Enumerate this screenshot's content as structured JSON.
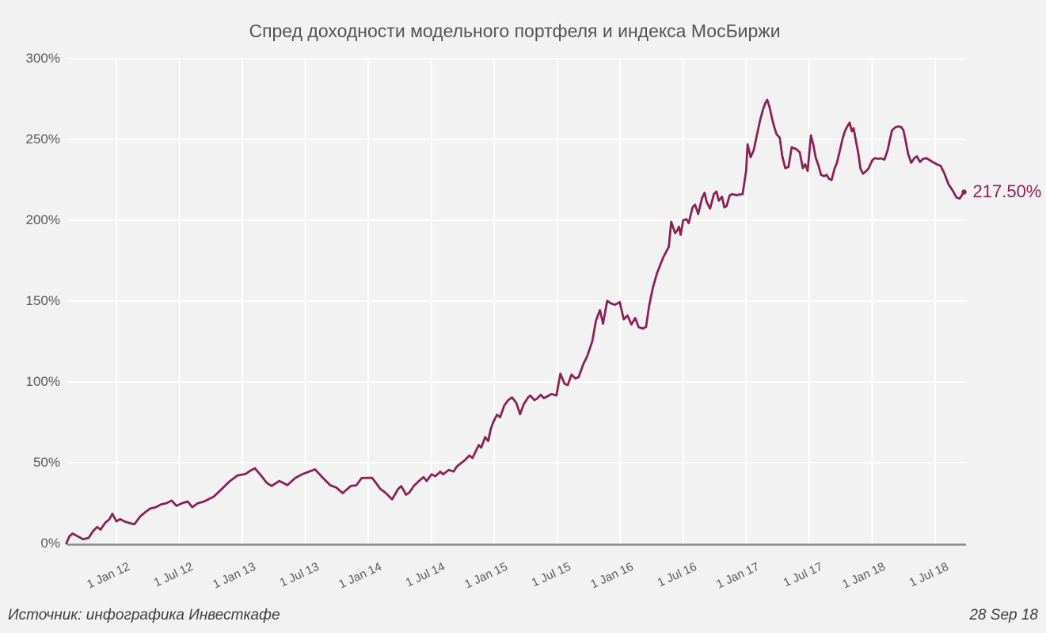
{
  "page": {
    "background": "#f2f2f2"
  },
  "footer": {
    "source": "Источник: инфографика Инвесткафе",
    "date": "28 Sep 18"
  },
  "chart_data": {
    "type": "line",
    "title": "Спред доходности модельного портфеля и индекса МосБиржи",
    "unit": "%",
    "line_color": "#8a2254",
    "background_color": "#f2f2f2",
    "grid_color": "#ffffff",
    "axis_color": "#8c8c8c",
    "text_color": "#595959",
    "grid": true,
    "legend_position": "none",
    "ylim": [
      0,
      300
    ],
    "y_ticks": [
      "0%",
      "50%",
      "100%",
      "150%",
      "200%",
      "250%",
      "300%"
    ],
    "x_ticks": [
      "1 Jan 12",
      "1 Jul 12",
      "1 Jan 13",
      "1 Jul 13",
      "1 Jan 14",
      "1 Jul 14",
      "1 Jan 15",
      "1 Jul 15",
      "1 Jan 16",
      "1 Jul 16",
      "1 Jan 17",
      "1 Jul 17",
      "1 Jan 18",
      "1 Jul 18"
    ],
    "last_value_label": "217.50%",
    "last_value": 217.5,
    "points": [
      [
        "2011-08-08",
        0
      ],
      [
        "2011-08-17",
        4.5
      ],
      [
        "2011-08-26",
        6.2
      ],
      [
        "2011-09-10",
        4.5
      ],
      [
        "2011-09-26",
        2.6
      ],
      [
        "2011-10-12",
        3.5
      ],
      [
        "2011-10-25",
        7.8
      ],
      [
        "2011-11-06",
        10.2
      ],
      [
        "2011-11-16",
        8.6
      ],
      [
        "2011-11-29",
        12.7
      ],
      [
        "2011-12-11",
        15.0
      ],
      [
        "2011-12-20",
        18.4
      ],
      [
        "2012-01-01",
        13.7
      ],
      [
        "2012-01-12",
        15.1
      ],
      [
        "2012-01-24",
        13.7
      ],
      [
        "2012-02-07",
        12.7
      ],
      [
        "2012-02-23",
        11.9
      ],
      [
        "2012-03-09",
        16.7
      ],
      [
        "2012-03-23",
        19.2
      ],
      [
        "2012-04-08",
        21.6
      ],
      [
        "2012-04-24",
        22.4
      ],
      [
        "2012-05-08",
        24.1
      ],
      [
        "2012-05-24",
        24.9
      ],
      [
        "2012-06-09",
        26.5
      ],
      [
        "2012-06-23",
        23.3
      ],
      [
        "2012-07-09",
        24.9
      ],
      [
        "2012-07-25",
        26.0
      ],
      [
        "2012-08-08",
        22.4
      ],
      [
        "2012-08-24",
        24.9
      ],
      [
        "2012-09-12",
        26.0
      ],
      [
        "2012-09-26",
        27.5
      ],
      [
        "2012-10-09",
        28.9
      ],
      [
        "2012-11-02",
        33.7
      ],
      [
        "2012-11-25",
        38.5
      ],
      [
        "2012-12-17",
        42.0
      ],
      [
        "2013-01-10",
        43.0
      ],
      [
        "2013-01-24",
        45.0
      ],
      [
        "2013-02-07",
        46.5
      ],
      [
        "2013-02-25",
        42.0
      ],
      [
        "2013-03-11",
        37.5
      ],
      [
        "2013-03-25",
        35.6
      ],
      [
        "2013-04-17",
        38.7
      ],
      [
        "2013-05-10",
        36.1
      ],
      [
        "2013-06-02",
        40.5
      ],
      [
        "2013-06-23",
        42.9
      ],
      [
        "2013-07-11",
        44.4
      ],
      [
        "2013-07-29",
        45.9
      ],
      [
        "2013-08-22",
        40.5
      ],
      [
        "2013-09-12",
        36.1
      ],
      [
        "2013-09-30",
        34.6
      ],
      [
        "2013-10-18",
        31.2
      ],
      [
        "2013-11-11",
        35.6
      ],
      [
        "2013-11-27",
        36.0
      ],
      [
        "2013-12-12",
        40.5
      ],
      [
        "2014-01-01",
        40.6
      ],
      [
        "2014-01-12",
        40.6
      ],
      [
        "2014-01-19",
        38.7
      ],
      [
        "2014-02-05",
        33.8
      ],
      [
        "2014-02-20",
        31.4
      ],
      [
        "2014-03-09",
        27.3
      ],
      [
        "2014-03-27",
        33.8
      ],
      [
        "2014-04-05",
        35.5
      ],
      [
        "2014-04-19",
        30.2
      ],
      [
        "2014-04-28",
        31.4
      ],
      [
        "2014-05-12",
        35.8
      ],
      [
        "2014-05-28",
        39.0
      ],
      [
        "2014-06-09",
        41.1
      ],
      [
        "2014-06-18",
        38.7
      ],
      [
        "2014-07-02",
        42.8
      ],
      [
        "2014-07-13",
        41.6
      ],
      [
        "2014-07-27",
        44.4
      ],
      [
        "2014-08-05",
        42.8
      ],
      [
        "2014-08-21",
        45.5
      ],
      [
        "2014-09-05",
        44.5
      ],
      [
        "2014-09-14",
        47.6
      ],
      [
        "2014-09-28",
        50.0
      ],
      [
        "2014-10-07",
        51.5
      ],
      [
        "2014-10-20",
        54.4
      ],
      [
        "2014-10-29",
        52.9
      ],
      [
        "2014-11-17",
        60.9
      ],
      [
        "2014-11-24",
        59.3
      ],
      [
        "2014-12-05",
        65.8
      ],
      [
        "2014-12-14",
        63.4
      ],
      [
        "2014-12-21",
        70.7
      ],
      [
        "2014-12-28",
        74.8
      ],
      [
        "2015-01-09",
        79.7
      ],
      [
        "2015-01-18",
        78.1
      ],
      [
        "2015-01-30",
        85.4
      ],
      [
        "2015-02-11",
        88.7
      ],
      [
        "2015-02-22",
        90.4
      ],
      [
        "2015-03-04",
        87.1
      ],
      [
        "2015-03-15",
        80.0
      ],
      [
        "2015-03-26",
        86.3
      ],
      [
        "2015-04-08",
        90.4
      ],
      [
        "2015-04-14",
        91.5
      ],
      [
        "2015-04-26",
        88.7
      ],
      [
        "2015-05-03",
        89.6
      ],
      [
        "2015-05-14",
        92.0
      ],
      [
        "2015-05-23",
        89.9
      ],
      [
        "2015-06-04",
        91.2
      ],
      [
        "2015-06-15",
        92.5
      ],
      [
        "2015-06-29",
        91.6
      ],
      [
        "2015-07-10",
        105.0
      ],
      [
        "2015-07-22",
        98.9
      ],
      [
        "2015-08-01",
        98.0
      ],
      [
        "2015-08-12",
        104.5
      ],
      [
        "2015-08-23",
        102.1
      ],
      [
        "2015-09-02",
        102.9
      ],
      [
        "2015-09-16",
        111.1
      ],
      [
        "2015-09-27",
        115.9
      ],
      [
        "2015-10-11",
        124.9
      ],
      [
        "2015-10-22",
        138.0
      ],
      [
        "2015-11-03",
        144.4
      ],
      [
        "2015-11-12",
        136.0
      ],
      [
        "2015-11-24",
        150.1
      ],
      [
        "2015-12-05",
        148.5
      ],
      [
        "2015-12-16",
        147.7
      ],
      [
        "2015-12-30",
        149.3
      ],
      [
        "2016-01-11",
        138.7
      ],
      [
        "2016-01-22",
        141.1
      ],
      [
        "2016-02-03",
        135.5
      ],
      [
        "2016-02-14",
        139.5
      ],
      [
        "2016-02-24",
        133.8
      ],
      [
        "2016-03-06",
        133.0
      ],
      [
        "2016-03-15",
        134.0
      ],
      [
        "2016-03-24",
        147.0
      ],
      [
        "2016-04-04",
        158.0
      ],
      [
        "2016-04-16",
        167.0
      ],
      [
        "2016-05-04",
        177.0
      ],
      [
        "2016-05-20",
        183.5
      ],
      [
        "2016-05-27",
        199.0
      ],
      [
        "2016-06-08",
        192.0
      ],
      [
        "2016-06-15",
        194.0
      ],
      [
        "2016-06-19",
        196.0
      ],
      [
        "2016-06-24",
        191.0
      ],
      [
        "2016-07-01",
        199.9
      ],
      [
        "2016-07-10",
        200.7
      ],
      [
        "2016-07-17",
        198.2
      ],
      [
        "2016-07-28",
        208.0
      ],
      [
        "2016-08-05",
        209.6
      ],
      [
        "2016-08-14",
        203.9
      ],
      [
        "2016-08-25",
        213.7
      ],
      [
        "2016-09-02",
        217.0
      ],
      [
        "2016-09-08",
        211.3
      ],
      [
        "2016-09-18",
        207.2
      ],
      [
        "2016-09-29",
        216.2
      ],
      [
        "2016-10-06",
        217.8
      ],
      [
        "2016-10-13",
        212.1
      ],
      [
        "2016-10-22",
        214.5
      ],
      [
        "2016-10-29",
        208.0
      ],
      [
        "2016-11-05",
        208.8
      ],
      [
        "2016-11-14",
        215.3
      ],
      [
        "2016-11-21",
        216.2
      ],
      [
        "2016-12-03",
        215.5
      ],
      [
        "2016-12-14",
        216.0
      ],
      [
        "2016-12-21",
        216.2
      ],
      [
        "2017-01-01",
        231.0
      ],
      [
        "2017-01-05",
        247.0
      ],
      [
        "2017-01-14",
        239.0
      ],
      [
        "2017-01-23",
        243.5
      ],
      [
        "2017-02-01",
        252.0
      ],
      [
        "2017-02-11",
        262.0
      ],
      [
        "2017-02-20",
        269.0
      ],
      [
        "2017-02-27",
        273.0
      ],
      [
        "2017-03-01",
        274.5
      ],
      [
        "2017-03-08",
        270.0
      ],
      [
        "2017-03-15",
        263.0
      ],
      [
        "2017-03-22",
        257.4
      ],
      [
        "2017-03-28",
        253.3
      ],
      [
        "2017-04-07",
        251.0
      ],
      [
        "2017-04-14",
        240.0
      ],
      [
        "2017-04-23",
        232.2
      ],
      [
        "2017-05-02",
        233.0
      ],
      [
        "2017-05-11",
        245.2
      ],
      [
        "2017-05-20",
        244.4
      ],
      [
        "2017-05-27",
        243.6
      ],
      [
        "2017-06-04",
        242.0
      ],
      [
        "2017-06-13",
        232.2
      ],
      [
        "2017-06-20",
        234.6
      ],
      [
        "2017-06-27",
        230.6
      ],
      [
        "2017-07-06",
        252.5
      ],
      [
        "2017-07-13",
        246.8
      ],
      [
        "2017-07-20",
        238.7
      ],
      [
        "2017-07-28",
        233.8
      ],
      [
        "2017-08-05",
        228.1
      ],
      [
        "2017-08-14",
        227.3
      ],
      [
        "2017-08-21",
        228.1
      ],
      [
        "2017-08-28",
        225.7
      ],
      [
        "2017-09-05",
        224.9
      ],
      [
        "2017-09-14",
        232.2
      ],
      [
        "2017-09-20",
        235.0
      ],
      [
        "2017-09-30",
        244.0
      ],
      [
        "2017-10-06",
        250.0
      ],
      [
        "2017-10-13",
        255.0
      ],
      [
        "2017-10-20",
        258.0
      ],
      [
        "2017-10-27",
        260.4
      ],
      [
        "2017-11-03",
        255.0
      ],
      [
        "2017-11-08",
        257.0
      ],
      [
        "2017-11-15",
        249.0
      ],
      [
        "2017-11-22",
        241.0
      ],
      [
        "2017-11-28",
        232.0
      ],
      [
        "2017-12-05",
        228.8
      ],
      [
        "2017-12-14",
        230.5
      ],
      [
        "2017-12-21",
        232.0
      ],
      [
        "2018-01-01",
        237.0
      ],
      [
        "2018-01-09",
        238.5
      ],
      [
        "2018-01-18",
        238.0
      ],
      [
        "2018-01-27",
        238.3
      ],
      [
        "2018-02-06",
        237.5
      ],
      [
        "2018-02-15",
        243.0
      ],
      [
        "2018-02-22",
        250.0
      ],
      [
        "2018-02-28",
        255.6
      ],
      [
        "2018-03-08",
        257.6
      ],
      [
        "2018-03-15",
        258.0
      ],
      [
        "2018-03-24",
        257.8
      ],
      [
        "2018-03-31",
        255.6
      ],
      [
        "2018-04-07",
        249.0
      ],
      [
        "2018-04-14",
        241.0
      ],
      [
        "2018-04-23",
        235.6
      ],
      [
        "2018-05-02",
        238.5
      ],
      [
        "2018-05-09",
        239.5
      ],
      [
        "2018-05-18",
        236.1
      ],
      [
        "2018-05-27",
        238.0
      ],
      [
        "2018-06-06",
        238.5
      ],
      [
        "2018-06-15",
        237.3
      ],
      [
        "2018-06-24",
        236.1
      ],
      [
        "2018-07-06",
        234.6
      ],
      [
        "2018-07-17",
        233.7
      ],
      [
        "2018-07-28",
        228.8
      ],
      [
        "2018-08-09",
        222.4
      ],
      [
        "2018-08-21",
        218.5
      ],
      [
        "2018-09-02",
        214.1
      ],
      [
        "2018-09-11",
        213.4
      ],
      [
        "2018-09-24",
        217.5
      ]
    ]
  }
}
